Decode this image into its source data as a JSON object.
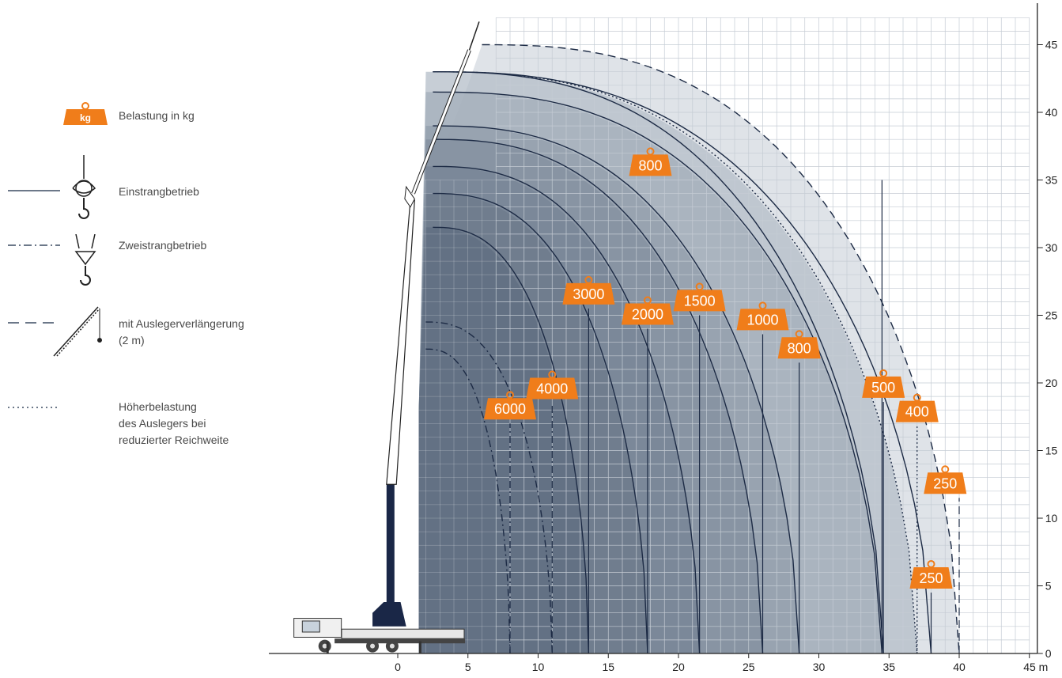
{
  "legend": {
    "load": "Belastung in kg",
    "load_badge": "kg",
    "single": "Einstrangbetrieb",
    "double": "Zweistrangbetrieb",
    "extension_line1": "mit Auslegerverlängerung",
    "extension_line2": "(2 m)",
    "overload_line1": "Höherbelastung",
    "overload_line2": "des Auslegers bei",
    "overload_line3": "reduzierter Reichweite"
  },
  "colors": {
    "accent": "#f07d1a",
    "curve": "#1d2b45",
    "fill_dark": "#5f6e80",
    "fill_light": "#dfe3e8",
    "grid": "#c5ccd4"
  },
  "chart_data": {
    "type": "area",
    "x_unit": "m",
    "xlim": [
      0,
      45
    ],
    "ylim": [
      0,
      45
    ],
    "xticks": [
      "0",
      "5",
      "10",
      "15",
      "20",
      "25",
      "30",
      "35",
      "40",
      "45 m"
    ],
    "yticks": [
      "0",
      "5",
      "10",
      "15",
      "20",
      "25",
      "30",
      "35",
      "40",
      "45"
    ],
    "grid": true,
    "series": [
      {
        "label": "6000",
        "style": "dash-dot",
        "max_height": 22.5,
        "reach": 8,
        "label_pos": [
          8,
          18
        ]
      },
      {
        "label": "4000",
        "style": "dash-dot",
        "max_height": 24.5,
        "reach": 11,
        "label_pos": [
          11,
          19.5
        ]
      },
      {
        "label": "3000",
        "style": "solid",
        "max_height": 31.5,
        "reach": 13.6,
        "label_pos": [
          13.6,
          26.5
        ]
      },
      {
        "label": "2000",
        "style": "solid",
        "max_height": 34.0,
        "reach": 17.8,
        "label_pos": [
          17.8,
          25
        ]
      },
      {
        "label": "1500",
        "style": "solid",
        "max_height": 36.0,
        "reach": 21.5,
        "label_pos": [
          21.5,
          26
        ]
      },
      {
        "label": "1000",
        "style": "solid",
        "max_height": 38.0,
        "reach": 26.0,
        "label_pos": [
          26,
          24.6
        ]
      },
      {
        "label": "800",
        "style": "solid",
        "max_height": 39.0,
        "reach": 28.6,
        "label_pos": [
          28.6,
          22.5
        ]
      },
      {
        "label": "800",
        "style": "solid",
        "max_height": 41.5,
        "reach": 34.5,
        "label_pos": [
          18,
          36
        ]
      },
      {
        "label": "500",
        "style": "solid",
        "max_height": 43.0,
        "reach": 34.6,
        "label_pos": [
          34.6,
          19.6
        ]
      },
      {
        "label": "400",
        "style": "dotted",
        "max_height": 43.0,
        "reach": 37.0,
        "label_pos": [
          37,
          17.8
        ]
      },
      {
        "label": "250",
        "style": "solid",
        "max_height": 43.0,
        "reach": 38.0,
        "label_pos": [
          38,
          5.5
        ]
      },
      {
        "label": "250",
        "style": "dashed",
        "max_height": 45.0,
        "reach": 40.0,
        "label_pos": [
          39,
          12.5
        ]
      }
    ]
  }
}
